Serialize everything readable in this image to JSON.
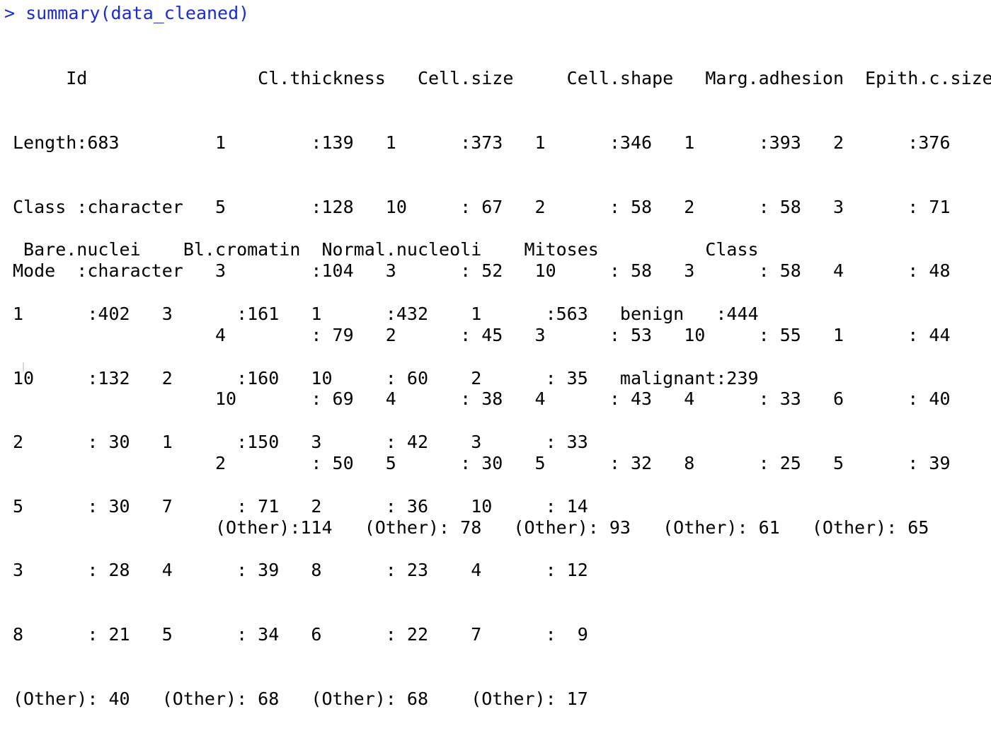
{
  "console": {
    "prompt": ">",
    "command": "summary(data_cleaned)",
    "prompt_color": "#1a2bd0",
    "block1": {
      "header": "     Id                Cl.thickness   Cell.size     Cell.shape   Marg.adhesion  Epith.c.size",
      "rows": [
        "Length:683         1        :139   1      :373   1      :346   1      :393   2      :376  ",
        "Class :character   5        :128   10     : 67   2      : 58   2      : 58   3      : 71  ",
        "Mode  :character   3        :104   3      : 52   10     : 58   3      : 58   4      : 48  ",
        "                   4        : 79   2      : 45   3      : 53   10     : 55   1      : 44  ",
        "                   10       : 69   4      : 38   4      : 43   4      : 33   6      : 40  ",
        "                   2        : 50   5      : 30   5      : 32   8      : 25   5      : 39  ",
        "                   (Other):114   (Other): 78   (Other): 93   (Other): 61   (Other): 65  "
      ]
    },
    "block2": {
      "header": " Bare.nuclei    Bl.cromatin  Normal.nucleoli    Mitoses          Class    ",
      "rows": [
        "1      :402   3      :161   1      :432    1      :563   benign   :444  ",
        "10     :132   2      :160   10     : 60    2      : 35   malignant:239  ",
        "2      : 30   1      :150   3      : 42    3      : 33                  ",
        "5      : 30   7      : 71   2      : 36    10     : 14                  ",
        "3      : 28   4      : 39   8      : 23    4      : 12                  ",
        "8      : 21   5      : 34   6      : 22    7      :  9                  ",
        "(Other): 40   (Other): 68   (Other): 68    (Other): 17                  "
      ]
    }
  }
}
